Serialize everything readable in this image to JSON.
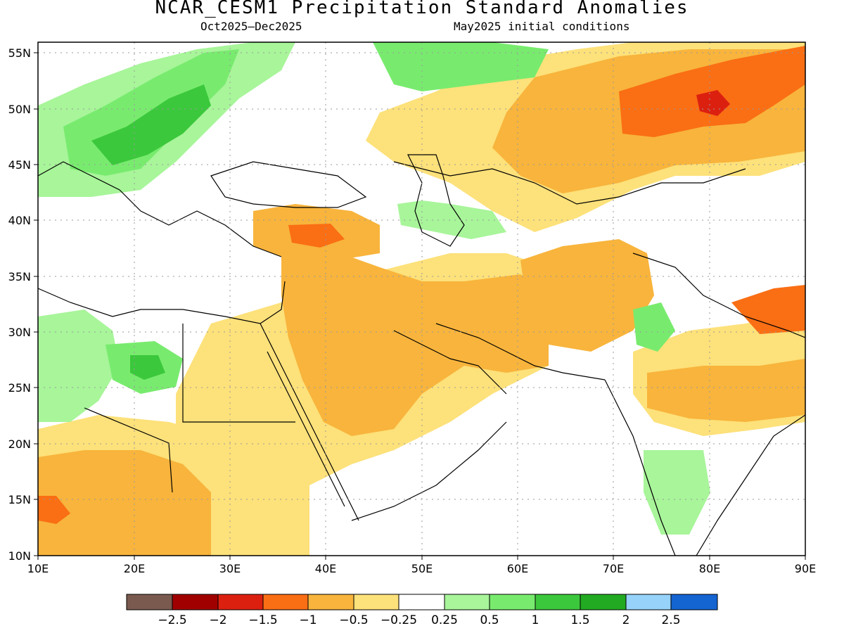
{
  "title": "NCAR_CESM1 Precipitation Standard Anomalies",
  "subtitle_left": "Oct2025–Dec2025",
  "subtitle_right": "May2025 initial conditions",
  "map": {
    "lon_range": [
      10,
      90
    ],
    "lat_range": [
      10,
      56
    ],
    "x_ticks": [
      "10E",
      "20E",
      "30E",
      "40E",
      "50E",
      "60E",
      "70E",
      "80E",
      "90E"
    ],
    "y_ticks": [
      "10N",
      "15N",
      "20N",
      "25N",
      "30N",
      "35N",
      "40N",
      "45N",
      "50N",
      "55N"
    ]
  },
  "colors": {
    "lt_neg2_5": "#7a5a4e",
    "neg2_5_to_neg2": "#a00000",
    "neg2_to_neg1_5": "#dc2010",
    "neg1_5_to_neg1": "#fa6e14",
    "neg1_to_neg0_5": "#f8b43c",
    "neg0_5_to_neg0_25": "#fde17a",
    "neutral": "#ffffff",
    "p0_25_to_0_5": "#a8f59a",
    "p0_5_to_1": "#78eb6e",
    "p1_to_1_5": "#3cc83c",
    "p1_5_to_2": "#22aa22",
    "p2_to_2_5": "#96d2fa",
    "gt2_5": "#1464d2"
  },
  "colorbar": {
    "colors": [
      "#7a5a4e",
      "#a00000",
      "#dc2010",
      "#fa6e14",
      "#f8b43c",
      "#fde17a",
      "#ffffff",
      "#a8f59a",
      "#78eb6e",
      "#3cc83c",
      "#22aa22",
      "#96d2fa",
      "#1464d2"
    ],
    "labels": [
      "−2.5",
      "−2",
      "−1.5",
      "−1",
      "−0.5",
      "−0.25",
      "0.25",
      "0.5",
      "1",
      "1.5",
      "2",
      "2.5"
    ]
  }
}
